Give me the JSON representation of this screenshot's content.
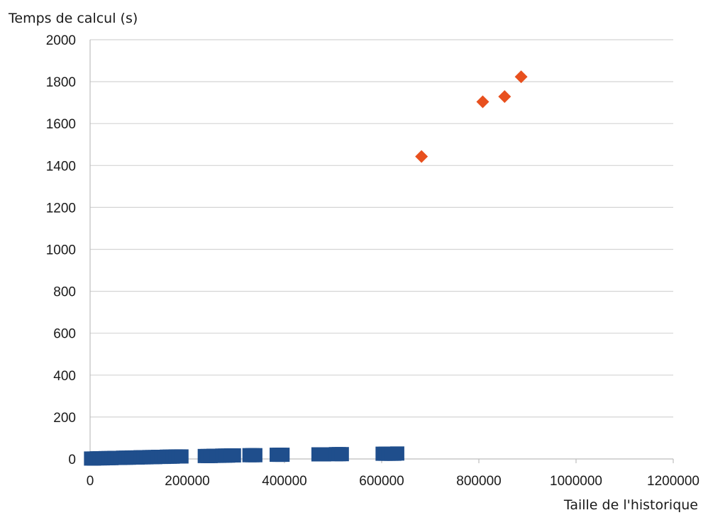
{
  "chart_data": {
    "type": "scatter",
    "xlabel": "Taille de l'historique",
    "ylabel": "Temps de calcul (s)",
    "xlim": [
      0,
      1200000
    ],
    "ylim": [
      0,
      2000
    ],
    "x_ticks": [
      0,
      200000,
      400000,
      600000,
      800000,
      1000000,
      1200000
    ],
    "y_ticks": [
      0,
      200,
      400,
      600,
      800,
      1000,
      1200,
      1400,
      1600,
      1800,
      2000
    ],
    "x_tick_labels": [
      "0",
      "200000",
      "400000",
      "600000",
      "800000",
      "1000000",
      "1200000"
    ],
    "y_tick_labels": [
      "0",
      "200",
      "400",
      "600",
      "800",
      "1000",
      "1200",
      "1400",
      "1600",
      "1800",
      "2000"
    ],
    "grid": "horizontal",
    "legend": "none",
    "series": [
      {
        "marker": "square",
        "color": "#1f4e8c",
        "points": [
          [
            2000,
            2
          ],
          [
            8000,
            2
          ],
          [
            14000,
            3
          ],
          [
            20000,
            3
          ],
          [
            26000,
            3
          ],
          [
            32000,
            4
          ],
          [
            38000,
            4
          ],
          [
            44000,
            4
          ],
          [
            50000,
            5
          ],
          [
            56000,
            5
          ],
          [
            62000,
            5
          ],
          [
            68000,
            6
          ],
          [
            74000,
            6
          ],
          [
            80000,
            6
          ],
          [
            86000,
            7
          ],
          [
            92000,
            7
          ],
          [
            98000,
            7
          ],
          [
            104000,
            8
          ],
          [
            110000,
            8
          ],
          [
            116000,
            8
          ],
          [
            122000,
            9
          ],
          [
            128000,
            9
          ],
          [
            134000,
            9
          ],
          [
            140000,
            10
          ],
          [
            146000,
            10
          ],
          [
            152000,
            10
          ],
          [
            158000,
            11
          ],
          [
            164000,
            11
          ],
          [
            170000,
            11
          ],
          [
            176000,
            12
          ],
          [
            182000,
            12
          ],
          [
            188000,
            12
          ],
          [
            236000,
            14
          ],
          [
            242000,
            14
          ],
          [
            248000,
            14
          ],
          [
            254000,
            15
          ],
          [
            260000,
            15
          ],
          [
            266000,
            15
          ],
          [
            272000,
            16
          ],
          [
            278000,
            16
          ],
          [
            284000,
            16
          ],
          [
            290000,
            17
          ],
          [
            296000,
            17
          ],
          [
            328000,
            18
          ],
          [
            334000,
            18
          ],
          [
            340000,
            18
          ],
          [
            384000,
            20
          ],
          [
            390000,
            20
          ],
          [
            396000,
            20
          ],
          [
            470000,
            22
          ],
          [
            476000,
            22
          ],
          [
            482000,
            22
          ],
          [
            506000,
            23
          ],
          [
            512000,
            23
          ],
          [
            518000,
            23
          ],
          [
            602000,
            25
          ],
          [
            608000,
            25
          ],
          [
            614000,
            25
          ],
          [
            620000,
            25
          ],
          [
            626000,
            25
          ],
          [
            632000,
            26
          ]
        ]
      },
      {
        "marker": "diamond",
        "color": "#e8501e",
        "points": [
          [
            682000,
            1443
          ],
          [
            808000,
            1704
          ],
          [
            853000,
            1729
          ],
          [
            887000,
            1823
          ]
        ]
      }
    ]
  }
}
